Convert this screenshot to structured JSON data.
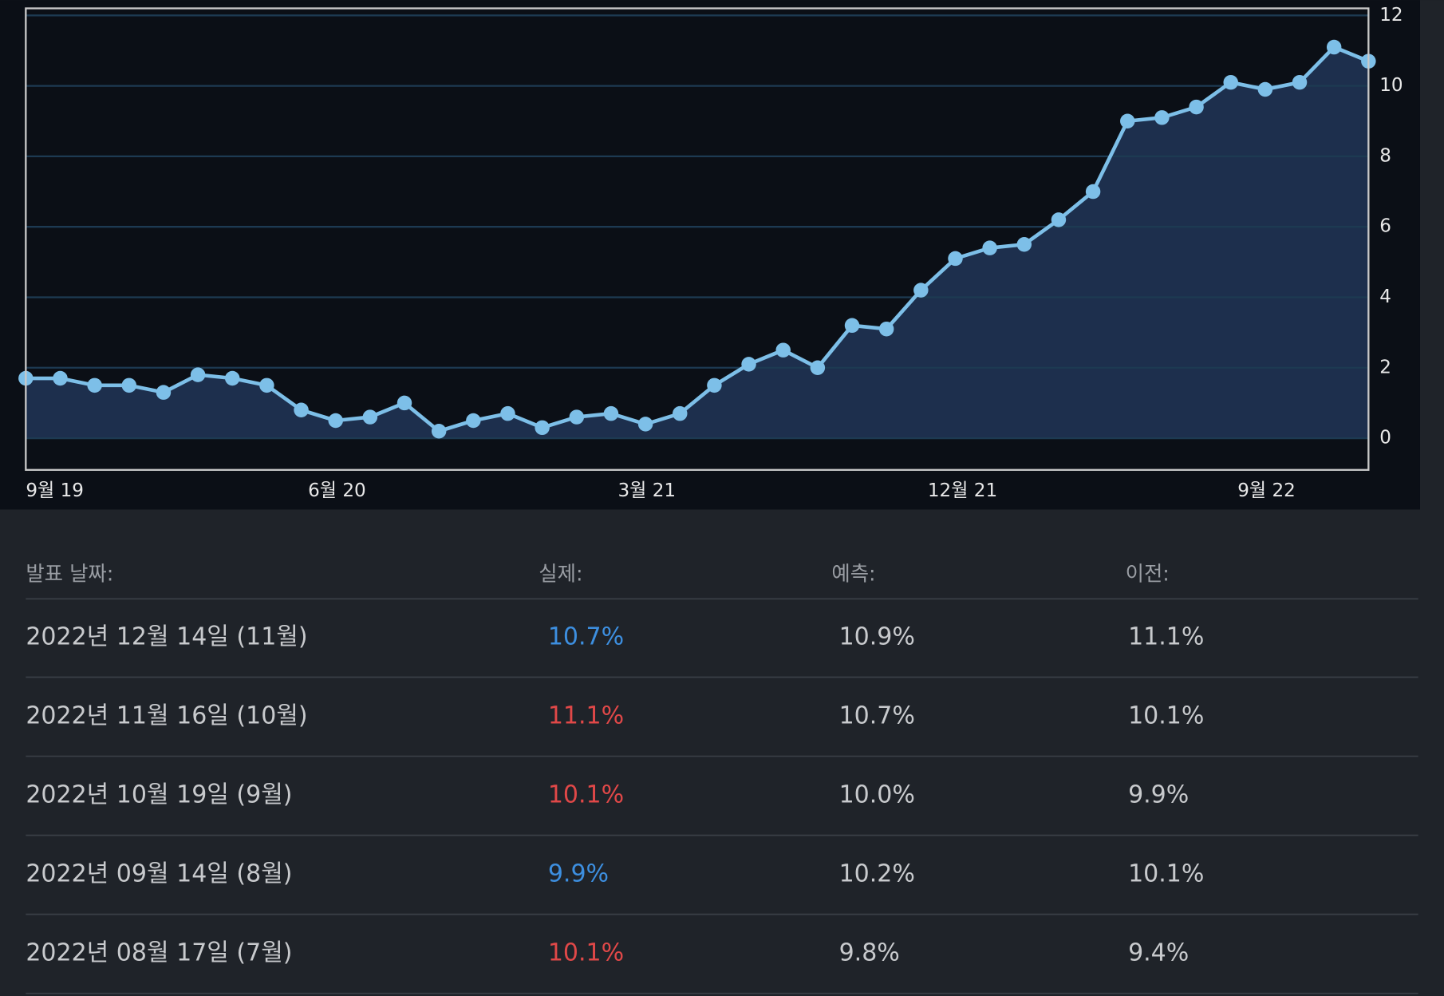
{
  "chart_data": {
    "type": "line",
    "categories": [
      "9월 19",
      null,
      null,
      null,
      null,
      null,
      null,
      null,
      null,
      "6월 20",
      null,
      null,
      null,
      null,
      null,
      null,
      null,
      null,
      "3월 21",
      null,
      null,
      null,
      null,
      null,
      null,
      null,
      null,
      "12월 21",
      null,
      null,
      null,
      null,
      null,
      null,
      null,
      null,
      "9월 22",
      null,
      null,
      null
    ],
    "series": [
      {
        "color": "#7dbfe8",
        "values": [
          1.7,
          1.7,
          1.5,
          1.5,
          1.3,
          1.8,
          1.7,
          1.5,
          0.8,
          0.5,
          0.6,
          1.0,
          0.2,
          0.5,
          0.7,
          0.3,
          0.6,
          0.7,
          0.4,
          0.7,
          1.5,
          2.1,
          2.5,
          2.0,
          3.2,
          3.1,
          4.2,
          5.1,
          5.4,
          5.5,
          6.2,
          7.0,
          9.0,
          9.1,
          9.4,
          10.1,
          9.9,
          10.1,
          11.1,
          10.7
        ]
      }
    ],
    "ylim": [
      -0.9,
      12.2
    ],
    "yticks": [
      0,
      2,
      4,
      6,
      8,
      10,
      12
    ],
    "grid": true,
    "area": true
  },
  "table": {
    "header": [
      "발표 날짜:",
      "실제:",
      "예측:",
      "이전:"
    ],
    "rows": [
      {
        "date": "2022년 12월 14일 (11월)",
        "actual": "10.7%",
        "forecast": "10.9%",
        "previous": "11.1%",
        "actual_color": "#3d8fe0"
      },
      {
        "date": "2022년 11월 16일 (10월)",
        "actual": "11.1%",
        "forecast": "10.7%",
        "previous": "10.1%",
        "actual_color": "#e04848"
      },
      {
        "date": "2022년 10월 19일 (9월)",
        "actual": "10.1%",
        "forecast": "10.0%",
        "previous": "9.9%",
        "actual_color": "#e04848"
      },
      {
        "date": "2022년 09월 14일 (8월)",
        "actual": "9.9%",
        "forecast": "10.2%",
        "previous": "10.1%",
        "actual_color": "#3d8fe0"
      },
      {
        "date": "2022년 08월 17일 (7월)",
        "actual": "10.1%",
        "forecast": "9.8%",
        "previous": "9.4%",
        "actual_color": "#e04848"
      }
    ]
  }
}
